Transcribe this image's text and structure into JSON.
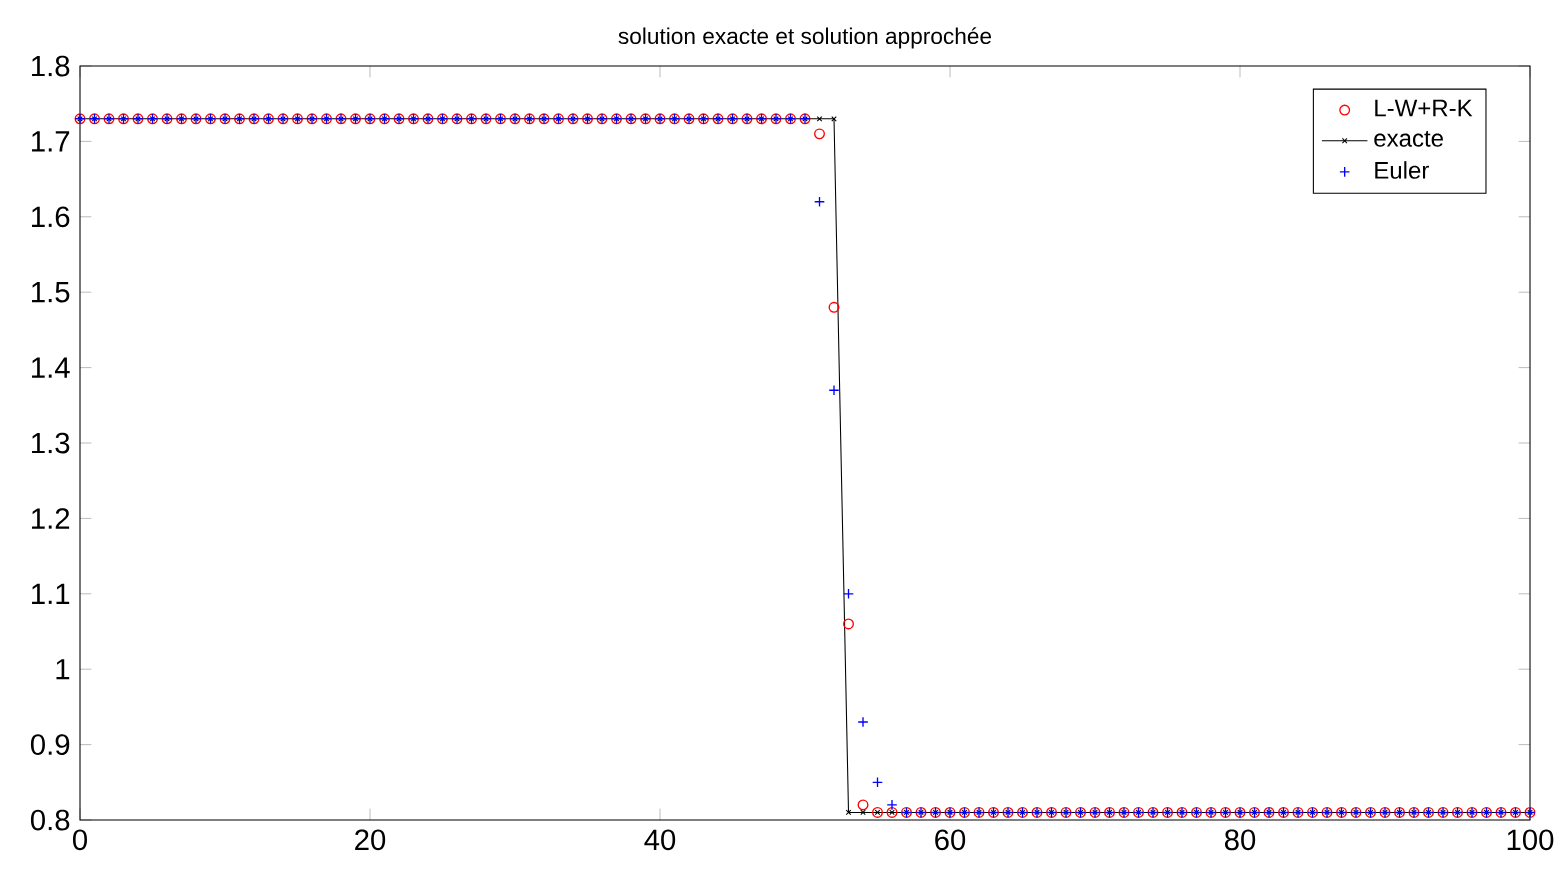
{
  "chart_data": {
    "type": "scatter",
    "title": "solution exacte et solution approchée",
    "x": [
      0,
      1,
      2,
      3,
      4,
      5,
      6,
      7,
      8,
      9,
      10,
      11,
      12,
      13,
      14,
      15,
      16,
      17,
      18,
      19,
      20,
      21,
      22,
      23,
      24,
      25,
      26,
      27,
      28,
      29,
      30,
      31,
      32,
      33,
      34,
      35,
      36,
      37,
      38,
      39,
      40,
      41,
      42,
      43,
      44,
      45,
      46,
      47,
      48,
      49,
      50,
      51,
      52,
      53,
      54,
      55,
      56,
      57,
      58,
      59,
      60,
      61,
      62,
      63,
      64,
      65,
      66,
      67,
      68,
      69,
      70,
      71,
      72,
      73,
      74,
      75,
      76,
      77,
      78,
      79,
      80,
      81,
      82,
      83,
      84,
      85,
      86,
      87,
      88,
      89,
      90,
      91,
      92,
      93,
      94,
      95,
      96,
      97,
      98,
      99,
      100
    ],
    "series": [
      {
        "name": "L-W+R-K",
        "color": "#ff0000",
        "marker": "circle",
        "values": [
          1.73,
          1.73,
          1.73,
          1.73,
          1.73,
          1.73,
          1.73,
          1.73,
          1.73,
          1.73,
          1.73,
          1.73,
          1.73,
          1.73,
          1.73,
          1.73,
          1.73,
          1.73,
          1.73,
          1.73,
          1.73,
          1.73,
          1.73,
          1.73,
          1.73,
          1.73,
          1.73,
          1.73,
          1.73,
          1.73,
          1.73,
          1.73,
          1.73,
          1.73,
          1.73,
          1.73,
          1.73,
          1.73,
          1.73,
          1.73,
          1.73,
          1.73,
          1.73,
          1.73,
          1.73,
          1.73,
          1.73,
          1.73,
          1.73,
          1.73,
          1.73,
          1.71,
          1.48,
          1.06,
          0.82,
          0.81,
          0.81,
          0.81,
          0.81,
          0.81,
          0.81,
          0.81,
          0.81,
          0.81,
          0.81,
          0.81,
          0.81,
          0.81,
          0.81,
          0.81,
          0.81,
          0.81,
          0.81,
          0.81,
          0.81,
          0.81,
          0.81,
          0.81,
          0.81,
          0.81,
          0.81,
          0.81,
          0.81,
          0.81,
          0.81,
          0.81,
          0.81,
          0.81,
          0.81,
          0.81,
          0.81,
          0.81,
          0.81,
          0.81,
          0.81,
          0.81,
          0.81,
          0.81,
          0.81,
          0.81,
          0.81
        ]
      },
      {
        "name": "exacte",
        "color": "#000000",
        "type": "line",
        "marker": "cross",
        "line_style": "solid",
        "values": [
          1.73,
          1.73,
          1.73,
          1.73,
          1.73,
          1.73,
          1.73,
          1.73,
          1.73,
          1.73,
          1.73,
          1.73,
          1.73,
          1.73,
          1.73,
          1.73,
          1.73,
          1.73,
          1.73,
          1.73,
          1.73,
          1.73,
          1.73,
          1.73,
          1.73,
          1.73,
          1.73,
          1.73,
          1.73,
          1.73,
          1.73,
          1.73,
          1.73,
          1.73,
          1.73,
          1.73,
          1.73,
          1.73,
          1.73,
          1.73,
          1.73,
          1.73,
          1.73,
          1.73,
          1.73,
          1.73,
          1.73,
          1.73,
          1.73,
          1.73,
          1.73,
          1.73,
          1.73,
          0.81,
          0.81,
          0.81,
          0.81,
          0.81,
          0.81,
          0.81,
          0.81,
          0.81,
          0.81,
          0.81,
          0.81,
          0.81,
          0.81,
          0.81,
          0.81,
          0.81,
          0.81,
          0.81,
          0.81,
          0.81,
          0.81,
          0.81,
          0.81,
          0.81,
          0.81,
          0.81,
          0.81,
          0.81,
          0.81,
          0.81,
          0.81,
          0.81,
          0.81,
          0.81,
          0.81,
          0.81,
          0.81,
          0.81,
          0.81,
          0.81,
          0.81,
          0.81,
          0.81,
          0.81,
          0.81,
          0.81,
          0.81
        ]
      },
      {
        "name": "Euler",
        "color": "#0000ff",
        "marker": "plus",
        "values": [
          1.73,
          1.73,
          1.73,
          1.73,
          1.73,
          1.73,
          1.73,
          1.73,
          1.73,
          1.73,
          1.73,
          1.73,
          1.73,
          1.73,
          1.73,
          1.73,
          1.73,
          1.73,
          1.73,
          1.73,
          1.73,
          1.73,
          1.73,
          1.73,
          1.73,
          1.73,
          1.73,
          1.73,
          1.73,
          1.73,
          1.73,
          1.73,
          1.73,
          1.73,
          1.73,
          1.73,
          1.73,
          1.73,
          1.73,
          1.73,
          1.73,
          1.73,
          1.73,
          1.73,
          1.73,
          1.73,
          1.73,
          1.73,
          1.73,
          1.73,
          1.73,
          1.62,
          1.37,
          1.1,
          0.93,
          0.85,
          0.82,
          0.81,
          0.81,
          0.81,
          0.81,
          0.81,
          0.81,
          0.81,
          0.81,
          0.81,
          0.81,
          0.81,
          0.81,
          0.81,
          0.81,
          0.81,
          0.81,
          0.81,
          0.81,
          0.81,
          0.81,
          0.81,
          0.81,
          0.81,
          0.81,
          0.81,
          0.81,
          0.81,
          0.81,
          0.81,
          0.81,
          0.81,
          0.81,
          0.81,
          0.81,
          0.81,
          0.81,
          0.81,
          0.81,
          0.81,
          0.81,
          0.81,
          0.81,
          0.81,
          0.81
        ]
      }
    ],
    "xlim": [
      0,
      100
    ],
    "xticks": [
      0,
      20,
      40,
      60,
      80,
      100
    ],
    "ylim": [
      0.8,
      1.8
    ],
    "yticks": [
      0.8,
      0.9,
      1,
      1.1,
      1.2,
      1.3,
      1.4,
      1.5,
      1.6,
      1.7,
      1.8
    ],
    "grid": false,
    "legend": "top right"
  }
}
